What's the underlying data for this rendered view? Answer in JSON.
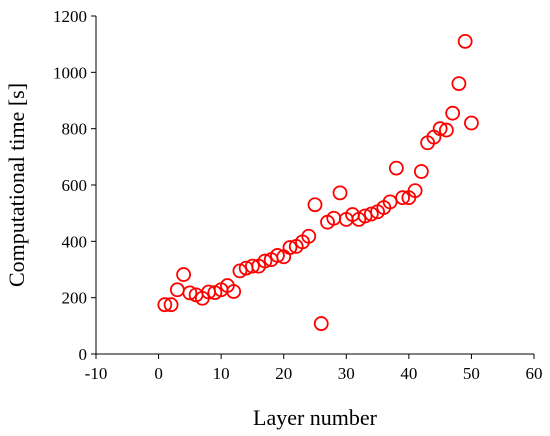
{
  "chart_data": {
    "type": "scatter",
    "title": "",
    "xlabel": "Layer number",
    "ylabel": "Computational time [s]",
    "xlim": [
      -10,
      60
    ],
    "ylim": [
      0,
      1200
    ],
    "xticks": [
      -10,
      0,
      10,
      20,
      30,
      40,
      50,
      60
    ],
    "yticks": [
      0,
      200,
      400,
      600,
      800,
      1000,
      1200
    ],
    "grid": false,
    "legend": "none",
    "marker": "open-circle",
    "color": "#ff0000",
    "series": [
      {
        "x": [
          1,
          2,
          3,
          4,
          5,
          6,
          7,
          8,
          9,
          10,
          11,
          12,
          13,
          14,
          15,
          16,
          17,
          18,
          19,
          20,
          21,
          22,
          23,
          24,
          25,
          26,
          27,
          28,
          29,
          30,
          31,
          32,
          33,
          34,
          35,
          36,
          37,
          38,
          39,
          40,
          41,
          42,
          43,
          44,
          45,
          46,
          47,
          48,
          49,
          50
        ],
        "y": [
          175,
          175,
          228,
          282,
          217,
          210,
          198,
          220,
          218,
          228,
          243,
          222,
          295,
          305,
          312,
          312,
          330,
          335,
          350,
          345,
          378,
          382,
          398,
          418,
          530,
          108,
          468,
          482,
          572,
          478,
          495,
          478,
          490,
          497,
          505,
          520,
          540,
          660,
          555,
          555,
          580,
          648,
          750,
          770,
          800,
          795,
          855,
          960,
          1110,
          820
        ]
      }
    ]
  }
}
